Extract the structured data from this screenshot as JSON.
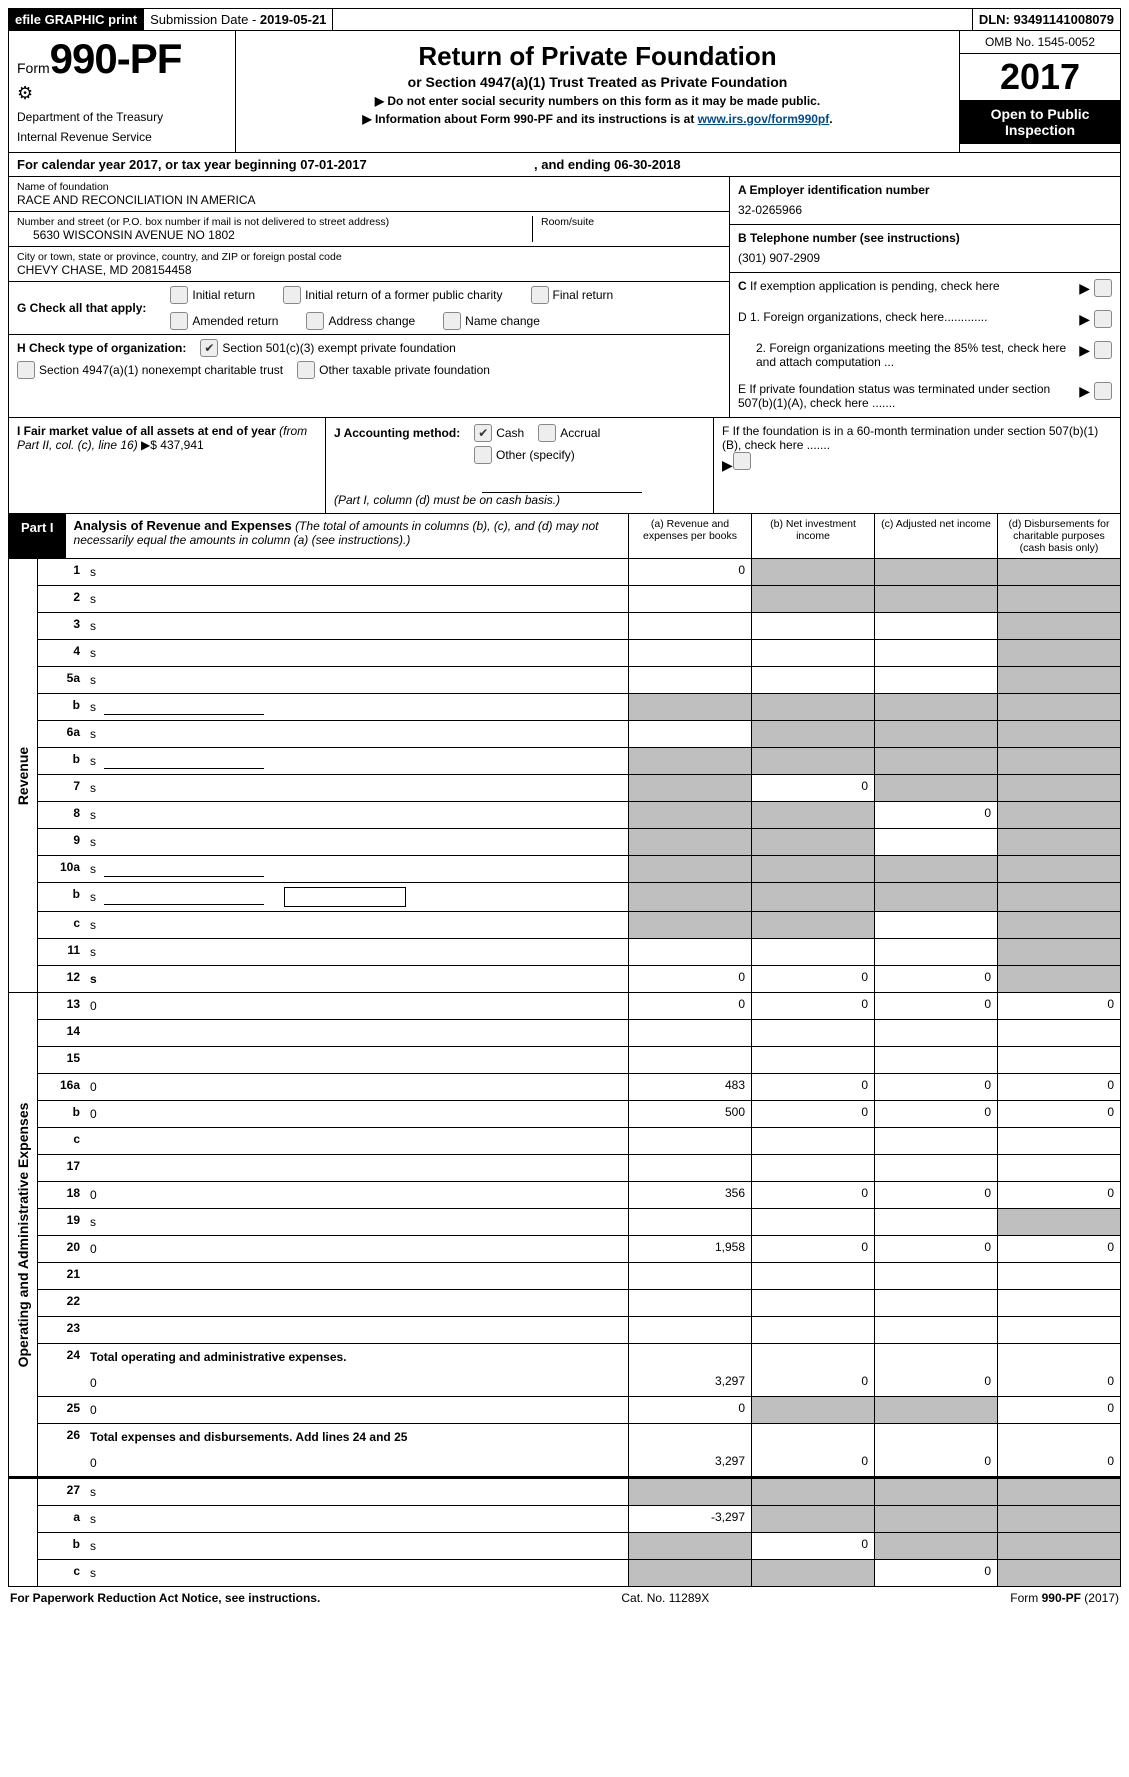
{
  "topbar": {
    "efile": "efile GRAPHIC print",
    "subdate_label": "Submission Date - ",
    "subdate": "2019-05-21",
    "dln_label": "DLN: ",
    "dln": "93491141008079"
  },
  "header": {
    "form_word": "Form",
    "form_no": "990-PF",
    "dept1": "Department of the Treasury",
    "dept2": "Internal Revenue Service",
    "title": "Return of Private Foundation",
    "subtitle": "or Section 4947(a)(1) Trust Treated as Private Foundation",
    "note1": "▶ Do not enter social security numbers on this form as it may be made public.",
    "note2_pre": "▶ Information about Form 990-PF and its instructions is at ",
    "note2_link": "www.irs.gov/form990pf",
    "omb": "OMB No. 1545-0052",
    "year": "2017",
    "open": "Open to Public Inspection"
  },
  "calyear": {
    "text": "For calendar year 2017, or tax year beginning 07-01-2017",
    "mid": ", and ending 06-30-2018"
  },
  "left": {
    "name_label": "Name of foundation",
    "name": "RACE AND RECONCILIATION IN AMERICA",
    "addr_label": "Number and street (or P.O. box number if mail is not delivered to street address)",
    "addr": "5630 WISCONSIN AVENUE NO 1802",
    "room_label": "Room/suite",
    "city_label": "City or town, state or province, country, and ZIP or foreign postal code",
    "city": "CHEVY CHASE, MD  208154458",
    "g_label": "G Check all that apply:",
    "g_opts": [
      "Initial return",
      "Initial return of a former public charity",
      "Final return",
      "Amended return",
      "Address change",
      "Name change"
    ],
    "h_label": "H Check type of organization:",
    "h_opt1": "Section 501(c)(3) exempt private foundation",
    "h_opt2": "Section 4947(a)(1) nonexempt charitable trust",
    "h_opt3": "Other taxable private foundation",
    "i_label": "I Fair market value of all assets at end of year ",
    "i_note": "(from Part II, col. (c), line 16)",
    "i_val": "▶$   437,941",
    "j_label": "J Accounting method:",
    "j_cash": "Cash",
    "j_accrual": "Accrual",
    "j_other": "Other (specify)",
    "j_note": "(Part I, column (d) must be on cash basis.)"
  },
  "right": {
    "a_label": "A Employer identification number",
    "a_val": "32-0265966",
    "b_label": "B Telephone number (see instructions)",
    "b_val": "(301) 907-2909",
    "c_label": "C  If exemption application is pending, check here",
    "d1": "D 1. Foreign organizations, check here.............",
    "d2": "2. Foreign organizations meeting the 85% test, check here and attach computation ...",
    "e": "E   If private foundation status was terminated under section 507(b)(1)(A), check here .......",
    "f": "F   If the foundation is in a 60-month termination under section 507(b)(1)(B), check here ......."
  },
  "part1": {
    "label": "Part I",
    "title": "Analysis of Revenue and Expenses",
    "note": " (The total of amounts in columns (b), (c), and (d) may not necessarily equal the amounts in column (a) (see instructions).)",
    "cols": {
      "a": "(a)    Revenue and expenses per books",
      "b": "(b)    Net investment income",
      "c": "(c)    Adjusted net income",
      "d": "(d)    Disbursements for charitable purposes (cash basis only)"
    }
  },
  "revenue_label": "Revenue",
  "expense_label": "Operating and Administrative Expenses",
  "rows_rev": [
    {
      "n": "1",
      "d": "s",
      "a": "0",
      "b": "s",
      "c": "s"
    },
    {
      "n": "2",
      "d": "s",
      "a": "",
      "b": "s",
      "c": "s",
      "raw": true
    },
    {
      "n": "3",
      "d": "s",
      "a": "",
      "b": "",
      "c": ""
    },
    {
      "n": "4",
      "d": "s",
      "a": "",
      "b": "",
      "c": ""
    },
    {
      "n": "5a",
      "d": "s",
      "a": "",
      "b": "",
      "c": ""
    },
    {
      "n": "b",
      "d": "s",
      "a": "s",
      "b": "s",
      "c": "s",
      "ul": true
    },
    {
      "n": "6a",
      "d": "s",
      "a": "",
      "b": "s",
      "c": "s"
    },
    {
      "n": "b",
      "d": "s",
      "a": "s",
      "b": "s",
      "c": "s",
      "ul": true
    },
    {
      "n": "7",
      "d": "s",
      "a": "s",
      "b": "0",
      "c": "s"
    },
    {
      "n": "8",
      "d": "s",
      "a": "s",
      "b": "s",
      "c": "0"
    },
    {
      "n": "9",
      "d": "s",
      "a": "s",
      "b": "s",
      "c": ""
    },
    {
      "n": "10a",
      "d": "s",
      "a": "s",
      "b": "s",
      "c": "s",
      "ul": true
    },
    {
      "n": "b",
      "d": "s",
      "a": "s",
      "b": "s",
      "c": "s",
      "ul": true,
      "box": true
    },
    {
      "n": "c",
      "d": "s",
      "a": "s",
      "b": "s",
      "c": ""
    },
    {
      "n": "11",
      "d": "s",
      "a": "",
      "b": "",
      "c": ""
    },
    {
      "n": "12",
      "d": "s",
      "a": "0",
      "b": "0",
      "c": "0",
      "bold": true,
      "raw": true
    }
  ],
  "rows_exp": [
    {
      "n": "13",
      "d": "0",
      "a": "0",
      "b": "0",
      "c": "0"
    },
    {
      "n": "14",
      "d": "",
      "a": "",
      "b": "",
      "c": ""
    },
    {
      "n": "15",
      "d": "",
      "a": "",
      "b": "",
      "c": ""
    },
    {
      "n": "16a",
      "d": "0",
      "a": "483",
      "b": "0",
      "c": "0"
    },
    {
      "n": "b",
      "d": "0",
      "a": "500",
      "b": "0",
      "c": "0"
    },
    {
      "n": "c",
      "d": "",
      "a": "",
      "b": "",
      "c": ""
    },
    {
      "n": "17",
      "d": "",
      "a": "",
      "b": "",
      "c": ""
    },
    {
      "n": "18",
      "d": "0",
      "a": "356",
      "b": "0",
      "c": "0"
    },
    {
      "n": "19",
      "d": "s",
      "a": "",
      "b": "",
      "c": ""
    },
    {
      "n": "20",
      "d": "0",
      "a": "1,958",
      "b": "0",
      "c": "0"
    },
    {
      "n": "21",
      "d": "",
      "a": "",
      "b": "",
      "c": ""
    },
    {
      "n": "22",
      "d": "",
      "a": "",
      "b": "",
      "c": ""
    },
    {
      "n": "23",
      "d": "",
      "a": "",
      "b": "",
      "c": ""
    },
    {
      "n": "24",
      "d": "<b>Total operating and administrative expenses.</b>",
      "raw": true,
      "nobot": true
    },
    {
      "n": "",
      "d": "0",
      "a": "3,297",
      "b": "0",
      "c": "0"
    },
    {
      "n": "25",
      "d": "0",
      "a": "0",
      "b": "s",
      "c": "s"
    },
    {
      "n": "26",
      "d": "<b>Total expenses and disbursements.</b> Add lines 24 and 25",
      "raw": true,
      "nobot": true,
      "bold": true
    },
    {
      "n": "",
      "d": "0",
      "a": "3,297",
      "b": "0",
      "c": "0"
    }
  ],
  "rows_bot": [
    {
      "n": "27",
      "d": "s",
      "a": "s",
      "b": "s",
      "c": "s"
    },
    {
      "n": "a",
      "d": "s",
      "a": "-3,297",
      "b": "s",
      "c": "s",
      "raw": true
    },
    {
      "n": "b",
      "d": "s",
      "a": "s",
      "b": "0",
      "c": "s",
      "raw": true
    },
    {
      "n": "c",
      "d": "s",
      "a": "s",
      "b": "s",
      "c": "0",
      "raw": true
    }
  ],
  "footer": {
    "left": "For Paperwork Reduction Act Notice, see instructions.",
    "mid": "Cat. No. 11289X",
    "right_pre": "Form ",
    "right_b": "990-PF",
    "right_post": " (2017)"
  }
}
